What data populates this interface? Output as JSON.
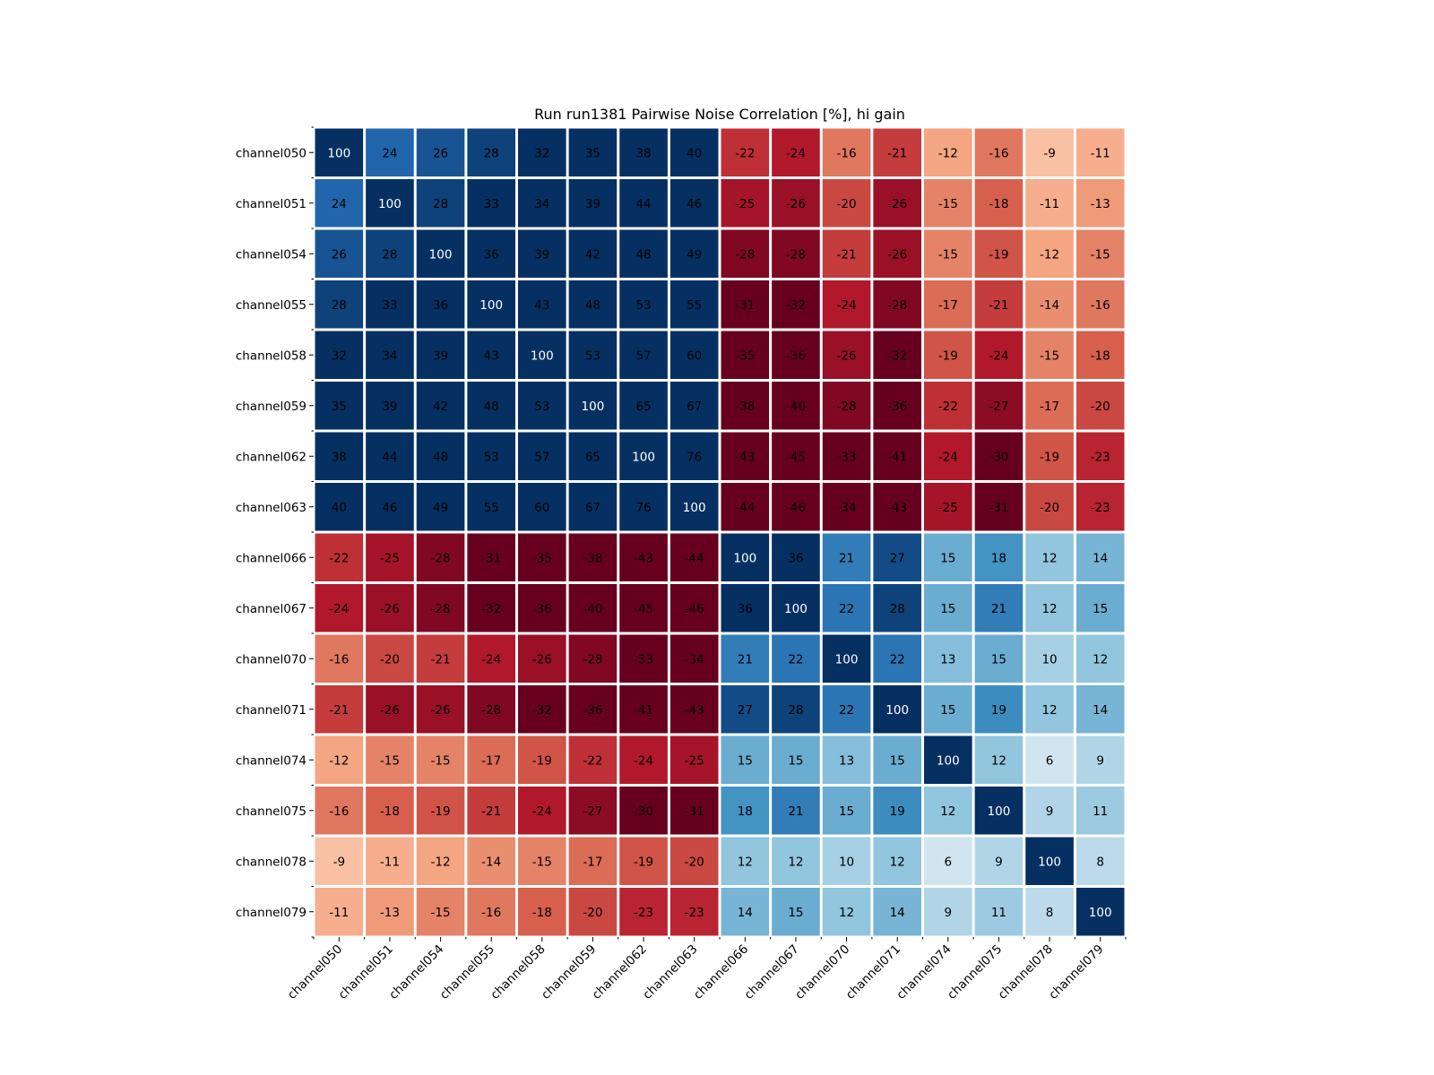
{
  "chart_data": {
    "type": "heatmap",
    "title": "Run run1381 Pairwise Noise Correlation [%], hi gain",
    "xlabel": "",
    "ylabel": "",
    "colormap": "RdBu",
    "color_range": [
      -30,
      30
    ],
    "colorbar": false,
    "annotated": true,
    "x_tick_rotation_deg": 45,
    "labels": [
      "channel050",
      "channel051",
      "channel054",
      "channel055",
      "channel058",
      "channel059",
      "channel062",
      "channel063",
      "channel066",
      "channel067",
      "channel070",
      "channel071",
      "channel074",
      "channel075",
      "channel078",
      "channel079"
    ],
    "values": [
      [
        100,
        24,
        26,
        28,
        32,
        35,
        38,
        40,
        -22,
        -24,
        -16,
        -21,
        -12,
        -16,
        -9,
        -11
      ],
      [
        24,
        100,
        28,
        33,
        34,
        39,
        44,
        46,
        -25,
        -26,
        -20,
        -26,
        -15,
        -18,
        -11,
        -13
      ],
      [
        26,
        28,
        100,
        36,
        39,
        42,
        48,
        49,
        -28,
        -28,
        -21,
        -26,
        -15,
        -19,
        -12,
        -15
      ],
      [
        28,
        33,
        36,
        100,
        43,
        48,
        53,
        55,
        -31,
        -32,
        -24,
        -28,
        -17,
        -21,
        -14,
        -16
      ],
      [
        32,
        34,
        39,
        43,
        100,
        53,
        57,
        60,
        -35,
        -36,
        -26,
        -32,
        -19,
        -24,
        -15,
        -18
      ],
      [
        35,
        39,
        42,
        48,
        53,
        100,
        65,
        67,
        -38,
        -40,
        -28,
        -36,
        -22,
        -27,
        -17,
        -20
      ],
      [
        38,
        44,
        48,
        53,
        57,
        65,
        100,
        76,
        -43,
        -45,
        -33,
        -41,
        -24,
        -30,
        -19,
        -23
      ],
      [
        40,
        46,
        49,
        55,
        60,
        67,
        76,
        100,
        -44,
        -46,
        -34,
        -43,
        -25,
        -31,
        -20,
        -23
      ],
      [
        -22,
        -25,
        -28,
        -31,
        -35,
        -38,
        -43,
        -44,
        100,
        36,
        21,
        27,
        15,
        18,
        12,
        14
      ],
      [
        -24,
        -26,
        -28,
        -32,
        -36,
        -40,
        -45,
        -46,
        36,
        100,
        22,
        28,
        15,
        21,
        12,
        15
      ],
      [
        -16,
        -20,
        -21,
        -24,
        -26,
        -28,
        -33,
        -34,
        21,
        22,
        100,
        22,
        13,
        15,
        10,
        12
      ],
      [
        -21,
        -26,
        -26,
        -28,
        -32,
        -36,
        -41,
        -43,
        27,
        28,
        22,
        100,
        15,
        19,
        12,
        14
      ],
      [
        -12,
        -15,
        -15,
        -17,
        -19,
        -22,
        -24,
        -25,
        15,
        15,
        13,
        15,
        100,
        12,
        6,
        9
      ],
      [
        -16,
        -18,
        -19,
        -21,
        -24,
        -27,
        -30,
        -31,
        18,
        21,
        15,
        19,
        12,
        100,
        9,
        11
      ],
      [
        -9,
        -11,
        -12,
        -14,
        -15,
        -17,
        -19,
        -20,
        12,
        12,
        10,
        12,
        6,
        9,
        100,
        8
      ],
      [
        -11,
        -13,
        -15,
        -16,
        -18,
        -20,
        -23,
        -23,
        14,
        15,
        12,
        14,
        9,
        11,
        8,
        100
      ]
    ],
    "diagonal_text_color": "#ffffff",
    "offdiagonal_text_color": "#000000",
    "grid_line_color": "#ffffff"
  }
}
